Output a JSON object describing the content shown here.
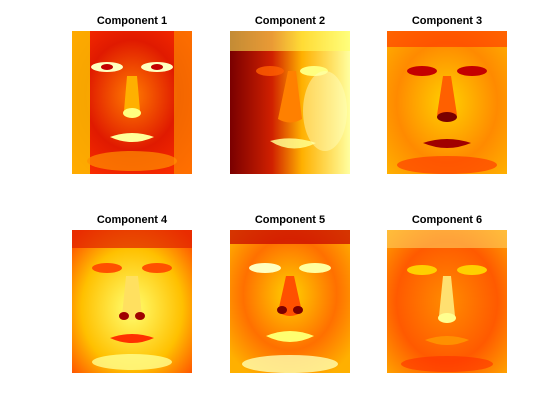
{
  "figure": {
    "colormap": "hot",
    "palette": [
      "#7a0000",
      "#c40000",
      "#ff2a00",
      "#ff7a00",
      "#ffc400",
      "#ffff3a",
      "#ffffc8"
    ],
    "panels": [
      {
        "title": "Component 1",
        "brightness": "dark-face-bright-features"
      },
      {
        "title": "Component 2",
        "brightness": "left-shadow"
      },
      {
        "title": "Component 3",
        "brightness": "bright-face-dark-features"
      },
      {
        "title": "Component 4",
        "brightness": "mostly-bright"
      },
      {
        "title": "Component 5",
        "brightness": "bright-center"
      },
      {
        "title": "Component 6",
        "brightness": "orange-face"
      }
    ]
  }
}
